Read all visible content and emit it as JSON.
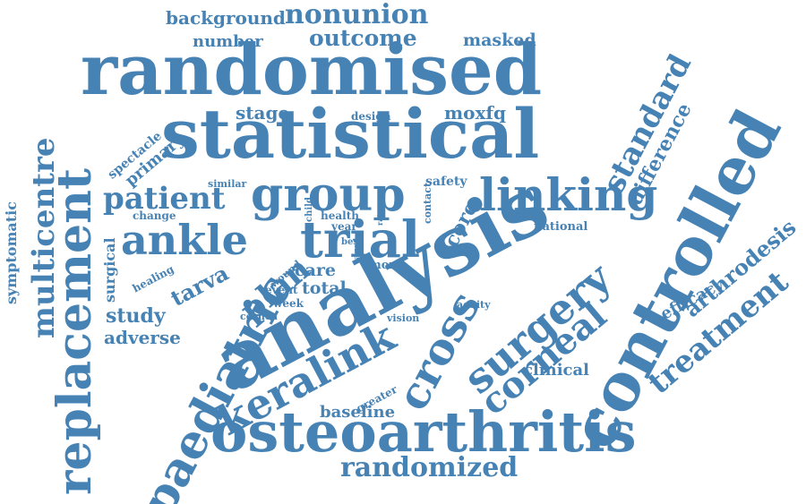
{
  "color": "#4682b4",
  "words": [
    "randomised",
    "statistical",
    "analysis",
    "controlled",
    "osteoarthritis",
    "replacement",
    "paediatric",
    "keralink",
    "surgery",
    "linking",
    "trial",
    "group",
    "ankle",
    "patient",
    "cross",
    "corneal",
    "multicentre",
    "treatment",
    "standard",
    "nonunion",
    "outcome",
    "randomized",
    "arthrodesis",
    "background",
    "masked",
    "plan",
    "number",
    "difference",
    "study",
    "baseline",
    "score",
    "adverse",
    "stage",
    "moxfq",
    "care",
    "total",
    "tarva",
    "efficacy",
    "clinical",
    "symptomatic",
    "primary",
    "spectacle",
    "surgical",
    "safety",
    "healing",
    "change",
    "similar",
    "design",
    "national",
    "health",
    "year",
    "child",
    "contact",
    "event",
    "wound",
    "week",
    "more",
    "best",
    "aged",
    "rate",
    "vision",
    "acuity",
    "cornea",
    "greater"
  ]
}
